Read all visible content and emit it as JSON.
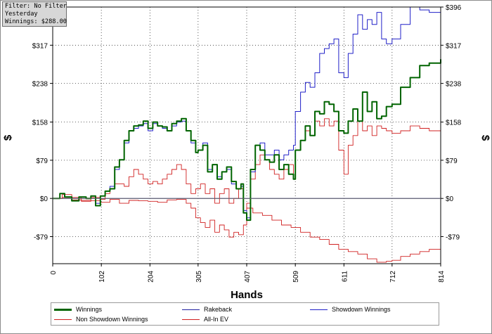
{
  "filter_box": {
    "line1": "Filter: No Filter",
    "line2": "Yesterday",
    "line3": "Winnings: $288.00"
  },
  "chart_data": {
    "type": "line",
    "title": "",
    "xlabel": "Hands",
    "ylabel": "$",
    "ylabel_right": "$",
    "xlim": [
      0,
      814
    ],
    "ylim": [
      -135,
      396
    ],
    "x_ticks": [
      0,
      102,
      204,
      305,
      407,
      509,
      611,
      712,
      814
    ],
    "y_ticks": [
      -79,
      0,
      79,
      158,
      238,
      317,
      396
    ],
    "y_tick_labels": [
      "-$79",
      "$0",
      "$79",
      "$158",
      "$238",
      "$317",
      "$396"
    ],
    "grid": true,
    "zero_line": true,
    "legend_position": "bottom",
    "series": [
      {
        "name": "Winnings",
        "color": "#006400",
        "x": [
          0,
          15,
          25,
          40,
          55,
          70,
          80,
          90,
          100,
          110,
          120,
          130,
          140,
          150,
          160,
          170,
          180,
          190,
          200,
          210,
          220,
          230,
          240,
          250,
          260,
          270,
          280,
          290,
          300,
          305,
          315,
          325,
          335,
          345,
          355,
          365,
          375,
          385,
          395,
          400,
          407,
          415,
          425,
          435,
          445,
          455,
          465,
          475,
          485,
          495,
          505,
          509,
          520,
          530,
          540,
          550,
          560,
          570,
          580,
          590,
          600,
          611,
          620,
          630,
          640,
          650,
          660,
          670,
          680,
          690,
          700,
          712,
          730,
          750,
          770,
          790,
          814
        ],
        "values": [
          0,
          10,
          3,
          -5,
          3,
          0,
          5,
          -15,
          5,
          15,
          20,
          65,
          80,
          120,
          140,
          150,
          152,
          160,
          145,
          158,
          150,
          148,
          140,
          155,
          160,
          165,
          140,
          120,
          95,
          100,
          110,
          55,
          70,
          40,
          55,
          65,
          35,
          20,
          30,
          -30,
          -45,
          60,
          110,
          100,
          80,
          75,
          90,
          60,
          70,
          50,
          40,
          100,
          120,
          150,
          130,
          180,
          175,
          200,
          195,
          180,
          140,
          135,
          160,
          185,
          160,
          220,
          180,
          200,
          165,
          170,
          190,
          195,
          230,
          250,
          275,
          280,
          288
        ]
      },
      {
        "name": "Rakeback",
        "color": "#1f1fa0",
        "x": [
          0,
          814
        ],
        "values": [
          0,
          0
        ]
      },
      {
        "name": "Showdown Winnings",
        "color": "#2020c8",
        "x": [
          0,
          15,
          25,
          40,
          55,
          70,
          80,
          90,
          100,
          110,
          120,
          130,
          140,
          150,
          160,
          170,
          180,
          190,
          200,
          210,
          220,
          230,
          240,
          250,
          260,
          270,
          280,
          290,
          300,
          305,
          315,
          325,
          335,
          345,
          355,
          365,
          375,
          385,
          395,
          400,
          407,
          415,
          425,
          435,
          445,
          455,
          465,
          475,
          485,
          495,
          505,
          509,
          520,
          530,
          540,
          550,
          560,
          570,
          580,
          590,
          600,
          611,
          620,
          630,
          640,
          650,
          660,
          670,
          680,
          690,
          700,
          712,
          730,
          750,
          770,
          790,
          814
        ],
        "values": [
          0,
          10,
          3,
          -5,
          3,
          0,
          5,
          -10,
          5,
          15,
          25,
          60,
          80,
          115,
          140,
          145,
          150,
          155,
          140,
          155,
          150,
          145,
          140,
          150,
          158,
          160,
          140,
          115,
          95,
          100,
          115,
          60,
          70,
          45,
          55,
          60,
          30,
          20,
          25,
          -25,
          -40,
          55,
          110,
          115,
          90,
          90,
          100,
          80,
          90,
          100,
          110,
          180,
          220,
          240,
          230,
          260,
          300,
          310,
          320,
          330,
          260,
          250,
          300,
          340,
          380,
          350,
          370,
          360,
          385,
          330,
          320,
          330,
          360,
          396,
          390,
          385,
          396
        ]
      },
      {
        "name": "Non Showdown Winnings",
        "color": "#d02020",
        "x": [
          0,
          20,
          40,
          60,
          80,
          100,
          120,
          140,
          160,
          180,
          200,
          220,
          240,
          260,
          280,
          290,
          300,
          310,
          320,
          330,
          340,
          350,
          360,
          370,
          380,
          390,
          400,
          407,
          420,
          440,
          460,
          480,
          500,
          520,
          540,
          560,
          580,
          600,
          620,
          640,
          660,
          680,
          700,
          712,
          730,
          750,
          770,
          790,
          814
        ],
        "values": [
          0,
          2,
          -3,
          -6,
          -5,
          -8,
          -2,
          -10,
          -4,
          -5,
          -6,
          -8,
          -3,
          -2,
          -10,
          -20,
          -40,
          -50,
          -60,
          -45,
          -70,
          -55,
          -65,
          -80,
          -70,
          -75,
          -55,
          -20,
          -30,
          -35,
          -45,
          -55,
          -60,
          -70,
          -80,
          -85,
          -95,
          -105,
          -110,
          -115,
          -125,
          -132,
          -130,
          -128,
          -120,
          -115,
          -110,
          -105,
          -100
        ]
      },
      {
        "name": "All-In EV",
        "color": "#d02020",
        "x": [
          0,
          20,
          40,
          60,
          80,
          100,
          110,
          120,
          130,
          140,
          150,
          160,
          170,
          180,
          190,
          200,
          210,
          220,
          230,
          240,
          250,
          260,
          270,
          280,
          290,
          300,
          310,
          320,
          330,
          340,
          350,
          360,
          370,
          380,
          390,
          400,
          407,
          415,
          425,
          435,
          445,
          455,
          465,
          475,
          485,
          495,
          505,
          509,
          520,
          530,
          540,
          550,
          560,
          570,
          580,
          590,
          600,
          611,
          620,
          630,
          640,
          650,
          660,
          670,
          680,
          690,
          700,
          712,
          730,
          750,
          770,
          790,
          814
        ],
        "values": [
          0,
          8,
          2,
          -4,
          2,
          -2,
          10,
          20,
          30,
          30,
          25,
          45,
          60,
          50,
          40,
          30,
          35,
          30,
          40,
          50,
          60,
          70,
          60,
          30,
          10,
          20,
          30,
          10,
          20,
          -10,
          10,
          20,
          -10,
          0,
          20,
          -30,
          -10,
          40,
          70,
          90,
          80,
          60,
          50,
          40,
          60,
          70,
          40,
          100,
          120,
          140,
          130,
          160,
          150,
          165,
          150,
          160,
          100,
          50,
          110,
          130,
          160,
          140,
          150,
          130,
          150,
          145,
          140,
          135,
          140,
          150,
          145,
          140,
          138
        ]
      }
    ]
  }
}
